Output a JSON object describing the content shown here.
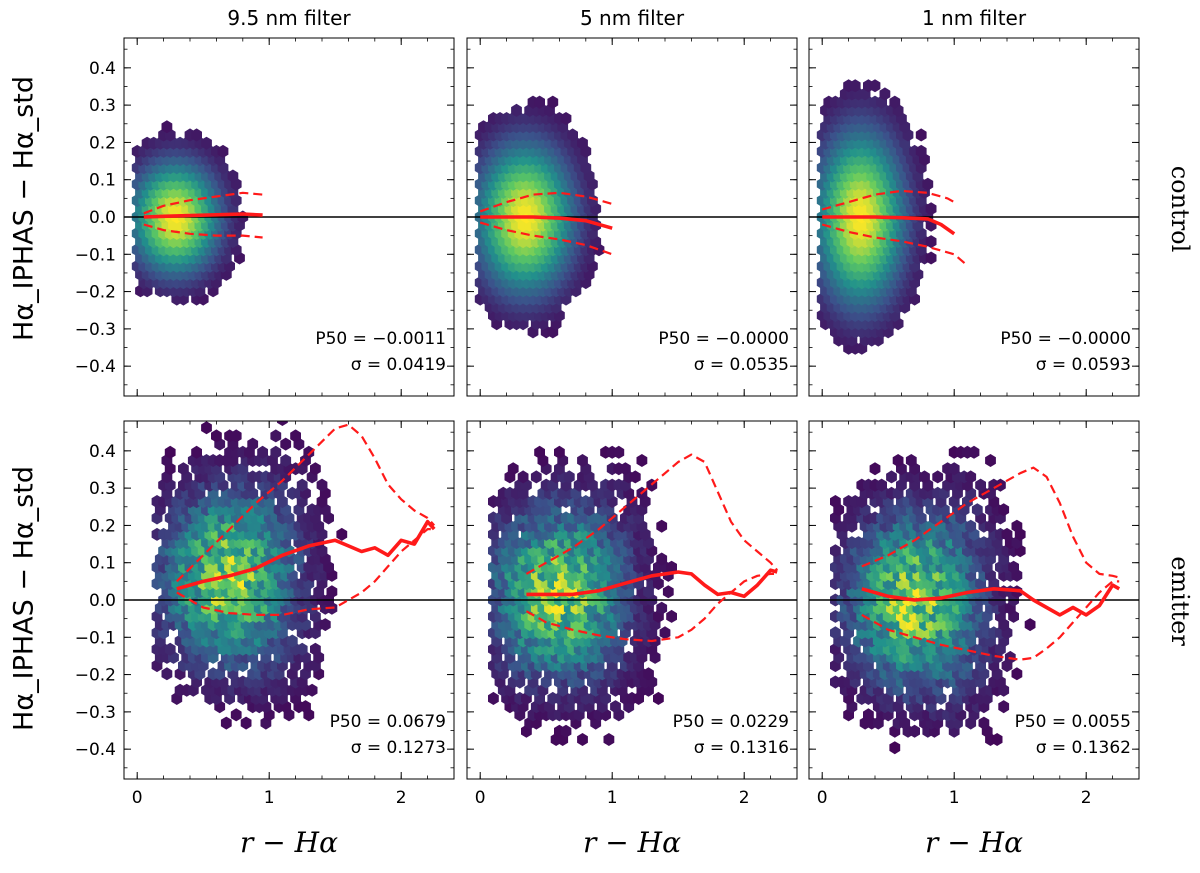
{
  "figure": {
    "col_titles": [
      "9.5 nm filter",
      "5 nm filter",
      "1 nm filter"
    ],
    "row_labels": [
      "control",
      "emitter"
    ],
    "ylabel": "Hα_IPHAS − Hα_std",
    "xlabel": "r − Hα",
    "colors": {
      "median": "#ff1a1a",
      "zero_line": "#000000"
    },
    "colormap": [
      "#440154",
      "#3b528b",
      "#21918c",
      "#5ec962",
      "#fde725"
    ]
  },
  "chart_data": [
    {
      "type": "hexbin",
      "row": "control",
      "col_title": "9.5 nm filter",
      "xlim": [
        -0.1,
        2.4
      ],
      "ylim": [
        -0.48,
        0.48
      ],
      "xticks": [
        0,
        1,
        2
      ],
      "yticks": [
        -0.4,
        -0.3,
        -0.2,
        -0.1,
        0.0,
        0.1,
        0.2,
        0.3,
        0.4
      ],
      "zero_line": 0.0,
      "stats": {
        "p50_label": "P50 = −0.0011",
        "sigma_label": "σ = 0.0419"
      },
      "density": {
        "cx": 0.3,
        "cy": 0.0,
        "sx": 0.2,
        "sy": 0.09,
        "xmin": 0.0,
        "xmax": 1.15,
        "n": 240
      },
      "median": {
        "x": [
          0.05,
          0.2,
          0.4,
          0.6,
          0.8,
          0.95
        ],
        "y": [
          0.0,
          0.002,
          0.004,
          0.006,
          0.008,
          0.005
        ]
      },
      "upper": {
        "x": [
          0.05,
          0.2,
          0.4,
          0.6,
          0.8,
          0.95
        ],
        "y": [
          0.01,
          0.03,
          0.045,
          0.055,
          0.065,
          0.06
        ]
      },
      "lower": {
        "x": [
          0.05,
          0.2,
          0.4,
          0.6,
          0.8,
          0.95
        ],
        "y": [
          -0.02,
          -0.035,
          -0.045,
          -0.05,
          -0.05,
          -0.055
        ]
      }
    },
    {
      "type": "hexbin",
      "row": "control",
      "col_title": "5 nm filter",
      "xlim": [
        -0.1,
        2.4
      ],
      "ylim": [
        -0.48,
        0.48
      ],
      "xticks": [
        0,
        1,
        2
      ],
      "yticks": [
        -0.4,
        -0.3,
        -0.2,
        -0.1,
        0.0,
        0.1,
        0.2,
        0.3,
        0.4
      ],
      "zero_line": 0.0,
      "stats": {
        "p50_label": "P50 = −0.0000",
        "sigma_label": "σ = 0.0535"
      },
      "density": {
        "cx": 0.35,
        "cy": 0.0,
        "sx": 0.22,
        "sy": 0.12,
        "xmin": 0.0,
        "xmax": 1.15,
        "n": 260
      },
      "median": {
        "x": [
          0.0,
          0.2,
          0.4,
          0.6,
          0.8,
          1.0
        ],
        "y": [
          0.0,
          0.0,
          0.0,
          -0.003,
          -0.01,
          -0.03
        ]
      },
      "upper": {
        "x": [
          0.0,
          0.2,
          0.4,
          0.6,
          0.8,
          1.0
        ],
        "y": [
          0.015,
          0.04,
          0.06,
          0.065,
          0.055,
          0.035
        ]
      },
      "lower": {
        "x": [
          0.0,
          0.2,
          0.4,
          0.6,
          0.8,
          1.0
        ],
        "y": [
          -0.015,
          -0.035,
          -0.05,
          -0.06,
          -0.075,
          -0.1
        ]
      }
    },
    {
      "type": "hexbin",
      "row": "control",
      "col_title": "1 nm filter",
      "xlim": [
        -0.1,
        2.4
      ],
      "ylim": [
        -0.48,
        0.48
      ],
      "xticks": [
        0,
        1,
        2
      ],
      "yticks": [
        -0.4,
        -0.3,
        -0.2,
        -0.1,
        0.0,
        0.1,
        0.2,
        0.3,
        0.4
      ],
      "zero_line": 0.0,
      "stats": {
        "p50_label": "P50 = −0.0000",
        "sigma_label": "σ = 0.0593"
      },
      "density": {
        "cx": 0.3,
        "cy": 0.0,
        "sx": 0.2,
        "sy": 0.14,
        "xmin": 0.0,
        "xmax": 1.15,
        "n": 270
      },
      "median": {
        "x": [
          0.0,
          0.2,
          0.4,
          0.6,
          0.8,
          0.9,
          1.0
        ],
        "y": [
          0.0,
          0.0,
          0.0,
          -0.002,
          -0.005,
          -0.02,
          -0.045
        ]
      },
      "upper": {
        "x": [
          0.0,
          0.2,
          0.4,
          0.6,
          0.8,
          0.95,
          1.0
        ],
        "y": [
          0.02,
          0.04,
          0.06,
          0.07,
          0.065,
          0.05,
          0.04
        ]
      },
      "lower": {
        "x": [
          0.0,
          0.2,
          0.4,
          0.6,
          0.8,
          1.0,
          1.1
        ],
        "y": [
          -0.02,
          -0.04,
          -0.055,
          -0.065,
          -0.08,
          -0.1,
          -0.13
        ]
      }
    },
    {
      "type": "hexbin",
      "row": "emitter",
      "col_title": "9.5 nm filter",
      "xlim": [
        -0.1,
        2.4
      ],
      "ylim": [
        -0.48,
        0.48
      ],
      "xticks": [
        0,
        1,
        2
      ],
      "yticks": [
        -0.4,
        -0.3,
        -0.2,
        -0.1,
        0.0,
        0.1,
        0.2,
        0.3,
        0.4
      ],
      "zero_line": 0.0,
      "stats": {
        "p50_label": "P50 = 0.0679",
        "sigma_label": "σ = 0.1273"
      },
      "density": {
        "cx": 0.7,
        "cy": 0.06,
        "sx": 0.35,
        "sy": 0.16,
        "xmin": 0.15,
        "xmax": 2.3,
        "n": 150
      },
      "median": {
        "x": [
          0.3,
          0.5,
          0.7,
          0.9,
          1.1,
          1.3,
          1.5,
          1.6,
          1.7,
          1.8,
          1.9,
          2.0,
          2.1,
          2.2,
          2.25
        ],
        "y": [
          0.03,
          0.05,
          0.065,
          0.085,
          0.12,
          0.145,
          0.16,
          0.145,
          0.13,
          0.14,
          0.12,
          0.16,
          0.15,
          0.21,
          0.19
        ]
      },
      "upper": {
        "x": [
          0.3,
          0.5,
          0.7,
          0.9,
          1.1,
          1.3,
          1.5,
          1.6,
          1.7,
          1.8,
          1.9,
          2.0,
          2.1,
          2.2,
          2.25
        ],
        "y": [
          0.05,
          0.12,
          0.19,
          0.26,
          0.32,
          0.39,
          0.46,
          0.47,
          0.44,
          0.38,
          0.31,
          0.27,
          0.24,
          0.22,
          0.2
        ]
      },
      "lower": {
        "x": [
          0.3,
          0.5,
          0.7,
          0.9,
          1.1,
          1.3,
          1.5,
          1.6,
          1.7,
          1.8,
          1.9,
          2.0,
          2.1,
          2.2,
          2.25
        ],
        "y": [
          0.02,
          -0.02,
          -0.035,
          -0.04,
          -0.04,
          -0.025,
          -0.02,
          0.0,
          0.02,
          0.05,
          0.09,
          0.13,
          0.16,
          0.19,
          0.19
        ]
      }
    },
    {
      "type": "hexbin",
      "row": "emitter",
      "col_title": "5 nm filter",
      "xlim": [
        -0.1,
        2.4
      ],
      "ylim": [
        -0.48,
        0.48
      ],
      "xticks": [
        0,
        1,
        2
      ],
      "yticks": [
        -0.4,
        -0.3,
        -0.2,
        -0.1,
        0.0,
        0.1,
        0.2,
        0.3,
        0.4
      ],
      "zero_line": 0.0,
      "stats": {
        "p50_label": "P50 = 0.0229",
        "sigma_label": "σ = 0.1316"
      },
      "density": {
        "cx": 0.6,
        "cy": 0.02,
        "sx": 0.35,
        "sy": 0.16,
        "xmin": 0.1,
        "xmax": 2.3,
        "n": 150
      },
      "median": {
        "x": [
          0.35,
          0.5,
          0.7,
          0.9,
          1.1,
          1.3,
          1.5,
          1.6,
          1.7,
          1.8,
          1.9,
          2.0,
          2.1,
          2.2,
          2.25
        ],
        "y": [
          0.015,
          0.015,
          0.015,
          0.025,
          0.045,
          0.065,
          0.075,
          0.07,
          0.04,
          0.015,
          0.02,
          0.01,
          0.04,
          0.08,
          0.075
        ]
      },
      "upper": {
        "x": [
          0.35,
          0.5,
          0.7,
          0.9,
          1.1,
          1.3,
          1.5,
          1.6,
          1.7,
          1.8,
          1.9,
          2.0,
          2.1,
          2.2,
          2.25
        ],
        "y": [
          0.07,
          0.1,
          0.14,
          0.19,
          0.25,
          0.31,
          0.37,
          0.39,
          0.37,
          0.29,
          0.21,
          0.16,
          0.13,
          0.1,
          0.08
        ]
      },
      "lower": {
        "x": [
          0.35,
          0.5,
          0.7,
          0.9,
          1.1,
          1.3,
          1.5,
          1.6,
          1.7,
          1.8,
          1.9,
          2.0,
          2.1,
          2.2,
          2.25
        ],
        "y": [
          -0.03,
          -0.06,
          -0.08,
          -0.095,
          -0.105,
          -0.11,
          -0.1,
          -0.08,
          -0.05,
          -0.01,
          0.02,
          0.05,
          0.065,
          0.07,
          0.07
        ]
      }
    },
    {
      "type": "hexbin",
      "row": "emitter",
      "col_title": "1 nm filter",
      "xlim": [
        -0.1,
        2.4
      ],
      "ylim": [
        -0.48,
        0.48
      ],
      "xticks": [
        0,
        1,
        2
      ],
      "yticks": [
        -0.4,
        -0.3,
        -0.2,
        -0.1,
        0.0,
        0.1,
        0.2,
        0.3,
        0.4
      ],
      "zero_line": 0.0,
      "stats": {
        "p50_label": "P50 = 0.0055",
        "sigma_label": "σ = 0.1362"
      },
      "density": {
        "cx": 0.7,
        "cy": 0.0,
        "sx": 0.35,
        "sy": 0.16,
        "xmin": 0.1,
        "xmax": 2.3,
        "n": 150
      },
      "median": {
        "x": [
          0.3,
          0.5,
          0.7,
          0.9,
          1.1,
          1.3,
          1.5,
          1.6,
          1.7,
          1.8,
          1.9,
          2.0,
          2.1,
          2.2,
          2.25
        ],
        "y": [
          0.03,
          0.01,
          0.0,
          0.005,
          0.02,
          0.03,
          0.025,
          0.0,
          -0.02,
          -0.04,
          -0.02,
          -0.04,
          -0.015,
          0.04,
          0.03
        ]
      },
      "upper": {
        "x": [
          0.3,
          0.5,
          0.7,
          0.9,
          1.1,
          1.3,
          1.5,
          1.6,
          1.7,
          1.8,
          1.9,
          2.0,
          2.1,
          2.2,
          2.25
        ],
        "y": [
          0.09,
          0.12,
          0.16,
          0.21,
          0.26,
          0.3,
          0.34,
          0.355,
          0.33,
          0.26,
          0.17,
          0.1,
          0.07,
          0.065,
          0.06
        ]
      },
      "lower": {
        "x": [
          0.3,
          0.5,
          0.7,
          0.9,
          1.1,
          1.3,
          1.5,
          1.6,
          1.7,
          1.8,
          1.9,
          2.0,
          2.1,
          2.2,
          2.25
        ],
        "y": [
          -0.04,
          -0.08,
          -0.1,
          -0.12,
          -0.135,
          -0.15,
          -0.16,
          -0.155,
          -0.13,
          -0.1,
          -0.06,
          -0.02,
          0.02,
          0.05,
          0.05
        ]
      }
    }
  ]
}
